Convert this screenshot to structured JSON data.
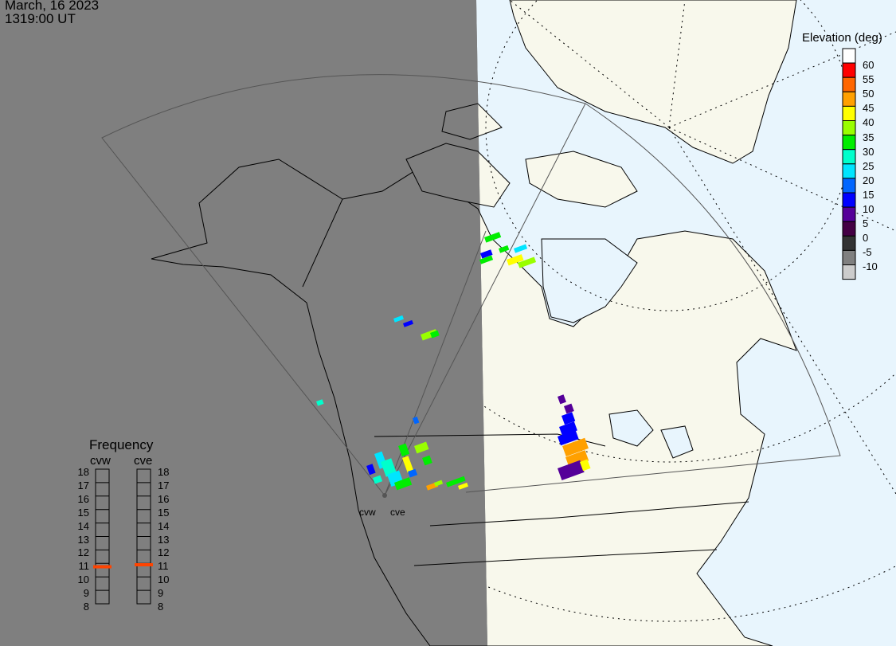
{
  "header": {
    "date": "March, 16 2023",
    "time": "1319:00 UT"
  },
  "elevation_legend": {
    "title": "Elevation (deg)",
    "ticks": [
      "60",
      "55",
      "50",
      "45",
      "40",
      "35",
      "30",
      "25",
      "20",
      "15",
      "10",
      "5",
      "0",
      "-5",
      "-10"
    ],
    "colors": [
      "#ffffff",
      "#ff0000",
      "#ff6600",
      "#ffa000",
      "#ffff00",
      "#99ff00",
      "#00ee00",
      "#00ffcc",
      "#00e5ff",
      "#0066ff",
      "#0000ff",
      "#550099",
      "#440044",
      "#333333",
      "#808080",
      "#cccccc"
    ]
  },
  "frequency_panel": {
    "title": "Frequency",
    "unit_range": [
      8,
      18
    ],
    "ticks": [
      "18",
      "17",
      "16",
      "15",
      "14",
      "13",
      "12",
      "11",
      "10",
      "9",
      "8"
    ],
    "radars": [
      {
        "name": "cvw",
        "frequency": 10.75
      },
      {
        "name": "cve",
        "frequency": 10.9
      }
    ],
    "marker_color": "#ff4400"
  },
  "sites": [
    "cvw",
    "cve"
  ],
  "colors": {
    "night": "#7f7f7f",
    "land_day": "#f8f8ec",
    "ocean_day": "#e8f5fd"
  }
}
